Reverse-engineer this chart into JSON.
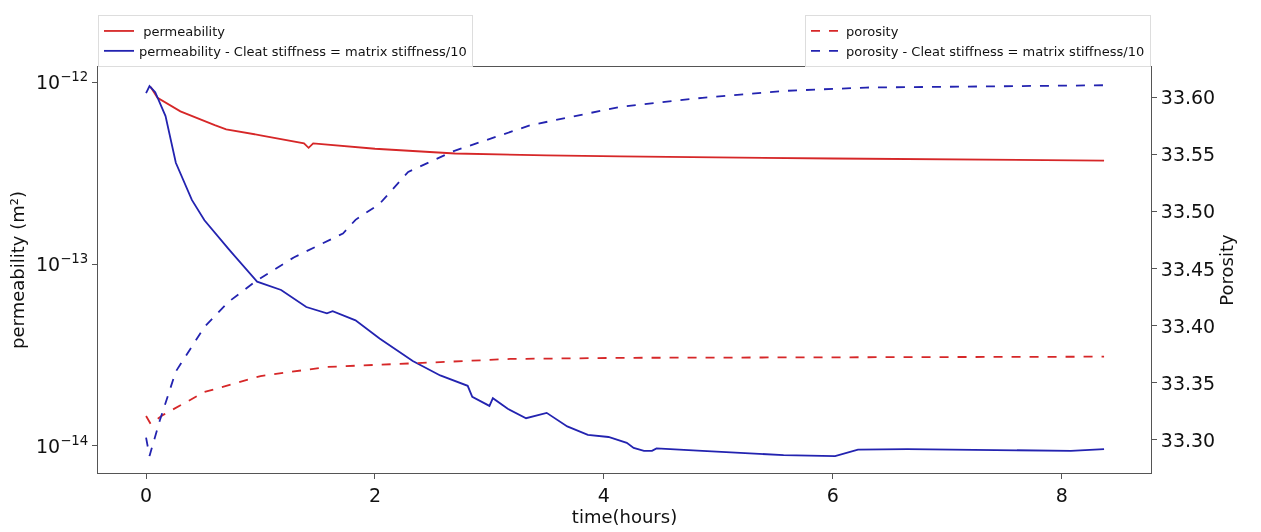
{
  "chart_data": {
    "type": "line",
    "xlabel": "time(hours)",
    "ylabel": "permeability (m²)",
    "y2label": "Porosity",
    "log": "y",
    "legend": "top",
    "marker": "none",
    "xlim": [
      -0.42,
      8.78
    ],
    "xticks": [
      0,
      2,
      4,
      6,
      8
    ],
    "ylim": [
      7.1e-15,
      1.21e-12
    ],
    "yticks": [
      {
        "value": 1e-14,
        "label": "10$^{−14}$"
      },
      {
        "value": 1e-13,
        "label": "10$^{−13}$"
      },
      {
        "value": 1e-12,
        "label": "10$^{−12}$"
      }
    ],
    "y2lim": [
      33.271,
      33.627
    ],
    "y2ticks": [
      {
        "value": 33.3,
        "label": "33.30"
      },
      {
        "value": 33.35,
        "label": "33.35"
      },
      {
        "value": 33.4,
        "label": "33.40"
      },
      {
        "value": 33.45,
        "label": "33.45"
      },
      {
        "value": 33.5,
        "label": "33.50"
      },
      {
        "value": 33.55,
        "label": "33.55"
      },
      {
        "value": 33.6,
        "label": "33.60"
      }
    ],
    "series": [
      {
        "name": " permeability",
        "color": "#d62728",
        "line_style": "solid",
        "x": [
          0.04,
          0.1,
          0.3,
          0.6,
          0.7,
          1.0,
          1.38,
          1.42,
          1.46,
          2.0,
          2.7,
          3.5,
          4.14,
          6.0,
          8.37
        ],
        "values": [
          9.4e-13,
          8.2e-13,
          6.9e-13,
          5.8e-13,
          5.5e-13,
          5.1e-13,
          4.6e-13,
          4.35e-13,
          4.6e-13,
          4.3e-13,
          4.05e-13,
          3.95e-13,
          3.9e-13,
          3.8e-13,
          3.7e-13
        ]
      },
      {
        "name": "permeability - Cleat stiffness = matrix stiffness/10",
        "color": "#2323b0",
        "line_style": "solid",
        "x": [
          0,
          0.03,
          0.08,
          0.17,
          0.26,
          0.4,
          0.51,
          0.72,
          0.97,
          1.18,
          1.4,
          1.58,
          1.63,
          1.83,
          2.04,
          2.33,
          2.57,
          2.81,
          2.85,
          3.0,
          3.03,
          3.16,
          3.32,
          3.5,
          3.68,
          3.86,
          4.04,
          4.2,
          4.26,
          4.35,
          4.42,
          4.46,
          4.86,
          5.57,
          6.02,
          6.22,
          6.65,
          8.08,
          8.37
        ],
        "values": [
          8.7e-13,
          9.5e-13,
          8.8e-13,
          6.5e-13,
          3.6e-13,
          2.25e-13,
          1.74e-13,
          1.21e-13,
          8e-14,
          7.2e-14,
          5.8e-14,
          5.35e-14,
          5.5e-14,
          4.9e-14,
          3.9e-14,
          2.93e-14,
          2.44e-14,
          2.14e-14,
          1.86e-14,
          1.66e-14,
          1.83e-14,
          1.6e-14,
          1.42e-14,
          1.52e-14,
          1.28e-14,
          1.15e-14,
          1.12e-14,
          1.04e-14,
          9.75e-15,
          9.4e-15,
          9.4e-15,
          9.7e-15,
          9.4e-15,
          8.9e-15,
          8.8e-15,
          9.55e-15,
          9.6e-15,
          9.4e-15,
          9.6e-15
        ]
      },
      {
        "name": "porosity",
        "color": "#d62728",
        "line_style": "dashed",
        "axis": "y2",
        "x": [
          0,
          0.04,
          0.15,
          0.51,
          1.0,
          1.58,
          2.29,
          3.18,
          4.2,
          8.37
        ],
        "values": [
          33.321,
          33.314,
          33.322,
          33.342,
          33.356,
          33.364,
          33.367,
          33.371,
          33.372,
          33.373
        ]
      },
      {
        "name": "porosity - Cleat stiffness = matrix stiffness/10",
        "color": "#2323b0",
        "line_style": "dashed",
        "axis": "y2",
        "x": [
          0,
          0.03,
          0.12,
          0.26,
          0.51,
          0.72,
          0.97,
          1.29,
          1.72,
          1.83,
          2.04,
          2.29,
          2.68,
          3.36,
          4.14,
          4.86,
          5.57,
          6.29,
          7.36,
          8.37
        ],
        "values": [
          33.302,
          33.286,
          33.317,
          33.36,
          33.399,
          33.421,
          33.44,
          33.46,
          33.481,
          33.493,
          33.507,
          33.535,
          33.553,
          33.576,
          33.592,
          33.6,
          33.606,
          33.609,
          33.61,
          33.611
        ]
      }
    ]
  }
}
